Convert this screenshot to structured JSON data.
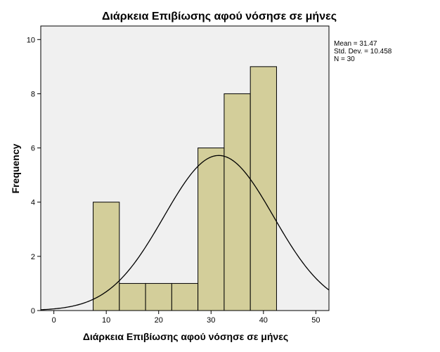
{
  "chart_data": {
    "type": "bar",
    "subtype": "histogram",
    "title": "Διάρκεια Επιβίωσης αφού νόσησε σε μήνες",
    "xlabel": "Διάρκεια Επιβίωσης αφού νόσησε σε μήνες",
    "ylabel": "Frequency",
    "xlim": [
      -2.5,
      52.5
    ],
    "ylim": [
      0,
      10.5
    ],
    "xticks": [
      0,
      10,
      20,
      30,
      40,
      50
    ],
    "yticks": [
      0,
      2,
      4,
      6,
      8,
      10
    ],
    "bins": [
      {
        "from": 7.5,
        "to": 12.5,
        "value": 4
      },
      {
        "from": 12.5,
        "to": 17.5,
        "value": 1
      },
      {
        "from": 17.5,
        "to": 22.5,
        "value": 1
      },
      {
        "from": 22.5,
        "to": 27.5,
        "value": 1
      },
      {
        "from": 27.5,
        "to": 32.5,
        "value": 6
      },
      {
        "from": 32.5,
        "to": 37.5,
        "value": 8
      },
      {
        "from": 37.5,
        "to": 42.5,
        "value": 9
      }
    ],
    "normal_curve": {
      "mean": 31.47,
      "sd": 10.458,
      "n": 30,
      "bin_width": 5
    },
    "stats_lines": [
      "Mean = 31.47",
      "Std. Dev. = 10.458",
      "N = 30"
    ],
    "colors": {
      "bar_fill": "#d3ce9a",
      "bar_stroke": "#000000",
      "plot_bg": "#f0f0f0",
      "curve": "#000000"
    },
    "grid": false,
    "legend": "none"
  }
}
